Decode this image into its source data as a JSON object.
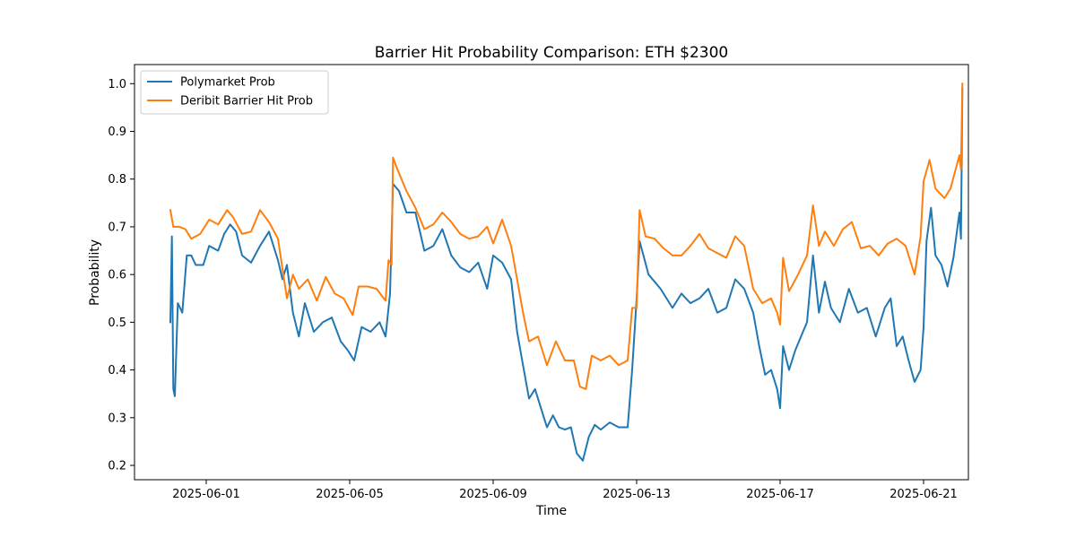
{
  "chart_data": {
    "type": "line",
    "title": "Barrier Hit Probability Comparison: ETH $2300",
    "xlabel": "Time",
    "ylabel": "Probability",
    "xlim": [
      "2025-05-30T00:00",
      "2025-06-22T06:00"
    ],
    "ylim": [
      0.17,
      1.04
    ],
    "x_ticks": [
      "2025-06-01",
      "2025-06-05",
      "2025-06-09",
      "2025-06-13",
      "2025-06-17",
      "2025-06-21"
    ],
    "y_ticks": [
      "0.2",
      "0.3",
      "0.4",
      "0.5",
      "0.6",
      "0.7",
      "0.8",
      "0.9",
      "1.0"
    ],
    "grid": false,
    "legend_position": "upper-left",
    "series": [
      {
        "name": "Polymarket Prob",
        "color": "#1f77b4",
        "points": [
          [
            "2025-05-31T00:00",
            0.5
          ],
          [
            "2025-05-31T01:00",
            0.68
          ],
          [
            "2025-05-31T02:00",
            0.36
          ],
          [
            "2025-05-31T03:00",
            0.345
          ],
          [
            "2025-05-31T05:00",
            0.54
          ],
          [
            "2025-05-31T08:00",
            0.52
          ],
          [
            "2025-05-31T11:00",
            0.64
          ],
          [
            "2025-05-31T14:00",
            0.64
          ],
          [
            "2025-05-31T17:00",
            0.62
          ],
          [
            "2025-05-31T22:00",
            0.62
          ],
          [
            "2025-06-01T02:00",
            0.66
          ],
          [
            "2025-06-01T08:00",
            0.65
          ],
          [
            "2025-06-01T12:00",
            0.685
          ],
          [
            "2025-06-01T16:00",
            0.705
          ],
          [
            "2025-06-01T20:00",
            0.69
          ],
          [
            "2025-06-02T00:00",
            0.64
          ],
          [
            "2025-06-02T06:00",
            0.625
          ],
          [
            "2025-06-02T12:00",
            0.66
          ],
          [
            "2025-06-02T18:00",
            0.69
          ],
          [
            "2025-06-03T00:00",
            0.63
          ],
          [
            "2025-06-03T03:00",
            0.59
          ],
          [
            "2025-06-03T06:00",
            0.62
          ],
          [
            "2025-06-03T10:00",
            0.52
          ],
          [
            "2025-06-03T14:00",
            0.47
          ],
          [
            "2025-06-03T18:00",
            0.54
          ],
          [
            "2025-06-04T00:00",
            0.48
          ],
          [
            "2025-06-04T06:00",
            0.5
          ],
          [
            "2025-06-04T12:00",
            0.51
          ],
          [
            "2025-06-04T18:00",
            0.46
          ],
          [
            "2025-06-04T23:00",
            0.44
          ],
          [
            "2025-06-05T03:00",
            0.42
          ],
          [
            "2025-06-05T08:00",
            0.49
          ],
          [
            "2025-06-05T14:00",
            0.48
          ],
          [
            "2025-06-05T20:00",
            0.5
          ],
          [
            "2025-06-06T00:00",
            0.47
          ],
          [
            "2025-06-06T03:00",
            0.56
          ],
          [
            "2025-06-06T05:00",
            0.79
          ],
          [
            "2025-06-06T09:00",
            0.775
          ],
          [
            "2025-06-06T14:00",
            0.73
          ],
          [
            "2025-06-06T20:00",
            0.73
          ],
          [
            "2025-06-07T02:00",
            0.65
          ],
          [
            "2025-06-07T08:00",
            0.66
          ],
          [
            "2025-06-07T14:00",
            0.695
          ],
          [
            "2025-06-07T20:00",
            0.64
          ],
          [
            "2025-06-08T02:00",
            0.615
          ],
          [
            "2025-06-08T08:00",
            0.605
          ],
          [
            "2025-06-08T14:00",
            0.625
          ],
          [
            "2025-06-08T20:00",
            0.57
          ],
          [
            "2025-06-09T00:00",
            0.64
          ],
          [
            "2025-06-09T06:00",
            0.625
          ],
          [
            "2025-06-09T12:00",
            0.59
          ],
          [
            "2025-06-09T16:00",
            0.48
          ],
          [
            "2025-06-09T20:00",
            0.41
          ],
          [
            "2025-06-10T00:00",
            0.34
          ],
          [
            "2025-06-10T04:00",
            0.36
          ],
          [
            "2025-06-10T08:00",
            0.32
          ],
          [
            "2025-06-10T12:00",
            0.28
          ],
          [
            "2025-06-10T16:00",
            0.305
          ],
          [
            "2025-06-10T20:00",
            0.28
          ],
          [
            "2025-06-11T00:00",
            0.275
          ],
          [
            "2025-06-11T04:00",
            0.28
          ],
          [
            "2025-06-11T08:00",
            0.225
          ],
          [
            "2025-06-11T12:00",
            0.21
          ],
          [
            "2025-06-11T16:00",
            0.26
          ],
          [
            "2025-06-11T20:00",
            0.285
          ],
          [
            "2025-06-12T00:00",
            0.275
          ],
          [
            "2025-06-12T06:00",
            0.29
          ],
          [
            "2025-06-12T12:00",
            0.28
          ],
          [
            "2025-06-12T18:00",
            0.28
          ],
          [
            "2025-06-12T21:00",
            0.4
          ],
          [
            "2025-06-13T00:00",
            0.55
          ],
          [
            "2025-06-13T02:00",
            0.67
          ],
          [
            "2025-06-13T08:00",
            0.6
          ],
          [
            "2025-06-13T16:00",
            0.57
          ],
          [
            "2025-06-14T00:00",
            0.53
          ],
          [
            "2025-06-14T06:00",
            0.56
          ],
          [
            "2025-06-14T12:00",
            0.54
          ],
          [
            "2025-06-14T18:00",
            0.55
          ],
          [
            "2025-06-15T00:00",
            0.57
          ],
          [
            "2025-06-15T06:00",
            0.52
          ],
          [
            "2025-06-15T12:00",
            0.53
          ],
          [
            "2025-06-15T18:00",
            0.59
          ],
          [
            "2025-06-16T00:00",
            0.57
          ],
          [
            "2025-06-16T06:00",
            0.52
          ],
          [
            "2025-06-16T10:00",
            0.45
          ],
          [
            "2025-06-16T14:00",
            0.39
          ],
          [
            "2025-06-16T18:00",
            0.4
          ],
          [
            "2025-06-16T22:00",
            0.36
          ],
          [
            "2025-06-17T00:00",
            0.32
          ],
          [
            "2025-06-17T02:00",
            0.45
          ],
          [
            "2025-06-17T06:00",
            0.4
          ],
          [
            "2025-06-17T10:00",
            0.44
          ],
          [
            "2025-06-17T14:00",
            0.47
          ],
          [
            "2025-06-17T18:00",
            0.5
          ],
          [
            "2025-06-17T22:00",
            0.64
          ],
          [
            "2025-06-18T02:00",
            0.52
          ],
          [
            "2025-06-18T06:00",
            0.585
          ],
          [
            "2025-06-18T10:00",
            0.53
          ],
          [
            "2025-06-18T16:00",
            0.5
          ],
          [
            "2025-06-18T22:00",
            0.57
          ],
          [
            "2025-06-19T04:00",
            0.52
          ],
          [
            "2025-06-19T10:00",
            0.53
          ],
          [
            "2025-06-19T16:00",
            0.47
          ],
          [
            "2025-06-19T22:00",
            0.53
          ],
          [
            "2025-06-20T02:00",
            0.55
          ],
          [
            "2025-06-20T06:00",
            0.45
          ],
          [
            "2025-06-20T10:00",
            0.47
          ],
          [
            "2025-06-20T14:00",
            0.42
          ],
          [
            "2025-06-20T18:00",
            0.375
          ],
          [
            "2025-06-20T22:00",
            0.4
          ],
          [
            "2025-06-21T00:00",
            0.49
          ],
          [
            "2025-06-21T02:00",
            0.67
          ],
          [
            "2025-06-21T05:00",
            0.74
          ],
          [
            "2025-06-21T08:00",
            0.64
          ],
          [
            "2025-06-21T12:00",
            0.62
          ],
          [
            "2025-06-21T16:00",
            0.575
          ],
          [
            "2025-06-21T20:00",
            0.635
          ],
          [
            "2025-06-22T00:00",
            0.73
          ],
          [
            "2025-06-22T01:00",
            0.675
          ],
          [
            "2025-06-22T02:00",
            0.99
          ]
        ]
      },
      {
        "name": "Deribit Barrier Hit Prob",
        "color": "#ff7f0e",
        "points": [
          [
            "2025-05-31T00:00",
            0.735
          ],
          [
            "2025-05-31T02:00",
            0.7
          ],
          [
            "2025-05-31T06:00",
            0.7
          ],
          [
            "2025-05-31T10:00",
            0.695
          ],
          [
            "2025-05-31T14:00",
            0.675
          ],
          [
            "2025-05-31T20:00",
            0.685
          ],
          [
            "2025-06-01T02:00",
            0.715
          ],
          [
            "2025-06-01T08:00",
            0.705
          ],
          [
            "2025-06-01T14:00",
            0.735
          ],
          [
            "2025-06-01T18:00",
            0.72
          ],
          [
            "2025-06-02T00:00",
            0.685
          ],
          [
            "2025-06-02T06:00",
            0.69
          ],
          [
            "2025-06-02T12:00",
            0.735
          ],
          [
            "2025-06-02T18:00",
            0.71
          ],
          [
            "2025-06-03T00:00",
            0.675
          ],
          [
            "2025-06-03T06:00",
            0.55
          ],
          [
            "2025-06-03T10:00",
            0.6
          ],
          [
            "2025-06-03T14:00",
            0.57
          ],
          [
            "2025-06-03T20:00",
            0.59
          ],
          [
            "2025-06-04T02:00",
            0.545
          ],
          [
            "2025-06-04T08:00",
            0.595
          ],
          [
            "2025-06-04T14:00",
            0.56
          ],
          [
            "2025-06-04T20:00",
            0.55
          ],
          [
            "2025-06-05T02:00",
            0.515
          ],
          [
            "2025-06-05T06:00",
            0.575
          ],
          [
            "2025-06-05T12:00",
            0.575
          ],
          [
            "2025-06-05T18:00",
            0.57
          ],
          [
            "2025-06-06T00:00",
            0.545
          ],
          [
            "2025-06-06T02:00",
            0.63
          ],
          [
            "2025-06-06T04:00",
            0.62
          ],
          [
            "2025-06-06T05:00",
            0.845
          ],
          [
            "2025-06-06T08:00",
            0.82
          ],
          [
            "2025-06-06T14:00",
            0.775
          ],
          [
            "2025-06-06T20:00",
            0.74
          ],
          [
            "2025-06-07T02:00",
            0.695
          ],
          [
            "2025-06-07T08:00",
            0.705
          ],
          [
            "2025-06-07T14:00",
            0.73
          ],
          [
            "2025-06-07T20:00",
            0.71
          ],
          [
            "2025-06-08T02:00",
            0.685
          ],
          [
            "2025-06-08T08:00",
            0.675
          ],
          [
            "2025-06-08T14:00",
            0.68
          ],
          [
            "2025-06-08T20:00",
            0.7
          ],
          [
            "2025-06-09T00:00",
            0.665
          ],
          [
            "2025-06-09T06:00",
            0.715
          ],
          [
            "2025-06-09T12:00",
            0.66
          ],
          [
            "2025-06-09T16:00",
            0.59
          ],
          [
            "2025-06-09T20:00",
            0.52
          ],
          [
            "2025-06-10T00:00",
            0.46
          ],
          [
            "2025-06-10T06:00",
            0.47
          ],
          [
            "2025-06-10T12:00",
            0.41
          ],
          [
            "2025-06-10T18:00",
            0.46
          ],
          [
            "2025-06-11T00:00",
            0.42
          ],
          [
            "2025-06-11T06:00",
            0.42
          ],
          [
            "2025-06-11T10:00",
            0.365
          ],
          [
            "2025-06-11T14:00",
            0.36
          ],
          [
            "2025-06-11T18:00",
            0.43
          ],
          [
            "2025-06-12T00:00",
            0.42
          ],
          [
            "2025-06-12T06:00",
            0.43
          ],
          [
            "2025-06-12T12:00",
            0.41
          ],
          [
            "2025-06-12T18:00",
            0.42
          ],
          [
            "2025-06-12T21:00",
            0.53
          ],
          [
            "2025-06-13T00:00",
            0.53
          ],
          [
            "2025-06-13T02:00",
            0.735
          ],
          [
            "2025-06-13T06:00",
            0.68
          ],
          [
            "2025-06-13T12:00",
            0.675
          ],
          [
            "2025-06-13T18:00",
            0.655
          ],
          [
            "2025-06-14T00:00",
            0.64
          ],
          [
            "2025-06-14T06:00",
            0.64
          ],
          [
            "2025-06-14T12:00",
            0.66
          ],
          [
            "2025-06-14T18:00",
            0.685
          ],
          [
            "2025-06-15T00:00",
            0.655
          ],
          [
            "2025-06-15T06:00",
            0.645
          ],
          [
            "2025-06-15T12:00",
            0.635
          ],
          [
            "2025-06-15T18:00",
            0.68
          ],
          [
            "2025-06-16T00:00",
            0.66
          ],
          [
            "2025-06-16T06:00",
            0.57
          ],
          [
            "2025-06-16T12:00",
            0.54
          ],
          [
            "2025-06-16T18:00",
            0.55
          ],
          [
            "2025-06-16T22:00",
            0.52
          ],
          [
            "2025-06-17T00:00",
            0.495
          ],
          [
            "2025-06-17T02:00",
            0.635
          ],
          [
            "2025-06-17T06:00",
            0.565
          ],
          [
            "2025-06-17T12:00",
            0.6
          ],
          [
            "2025-06-17T18:00",
            0.64
          ],
          [
            "2025-06-17T22:00",
            0.745
          ],
          [
            "2025-06-18T02:00",
            0.66
          ],
          [
            "2025-06-18T06:00",
            0.69
          ],
          [
            "2025-06-18T12:00",
            0.66
          ],
          [
            "2025-06-18T18:00",
            0.695
          ],
          [
            "2025-06-19T00:00",
            0.71
          ],
          [
            "2025-06-19T06:00",
            0.655
          ],
          [
            "2025-06-19T12:00",
            0.66
          ],
          [
            "2025-06-19T18:00",
            0.64
          ],
          [
            "2025-06-20T00:00",
            0.665
          ],
          [
            "2025-06-20T06:00",
            0.675
          ],
          [
            "2025-06-20T12:00",
            0.66
          ],
          [
            "2025-06-20T18:00",
            0.6
          ],
          [
            "2025-06-20T22:00",
            0.68
          ],
          [
            "2025-06-21T00:00",
            0.795
          ],
          [
            "2025-06-21T04:00",
            0.84
          ],
          [
            "2025-06-21T08:00",
            0.78
          ],
          [
            "2025-06-21T14:00",
            0.76
          ],
          [
            "2025-06-21T18:00",
            0.78
          ],
          [
            "2025-06-22T00:00",
            0.85
          ],
          [
            "2025-06-22T01:00",
            0.82
          ],
          [
            "2025-06-22T02:00",
            1.0
          ]
        ]
      }
    ]
  }
}
